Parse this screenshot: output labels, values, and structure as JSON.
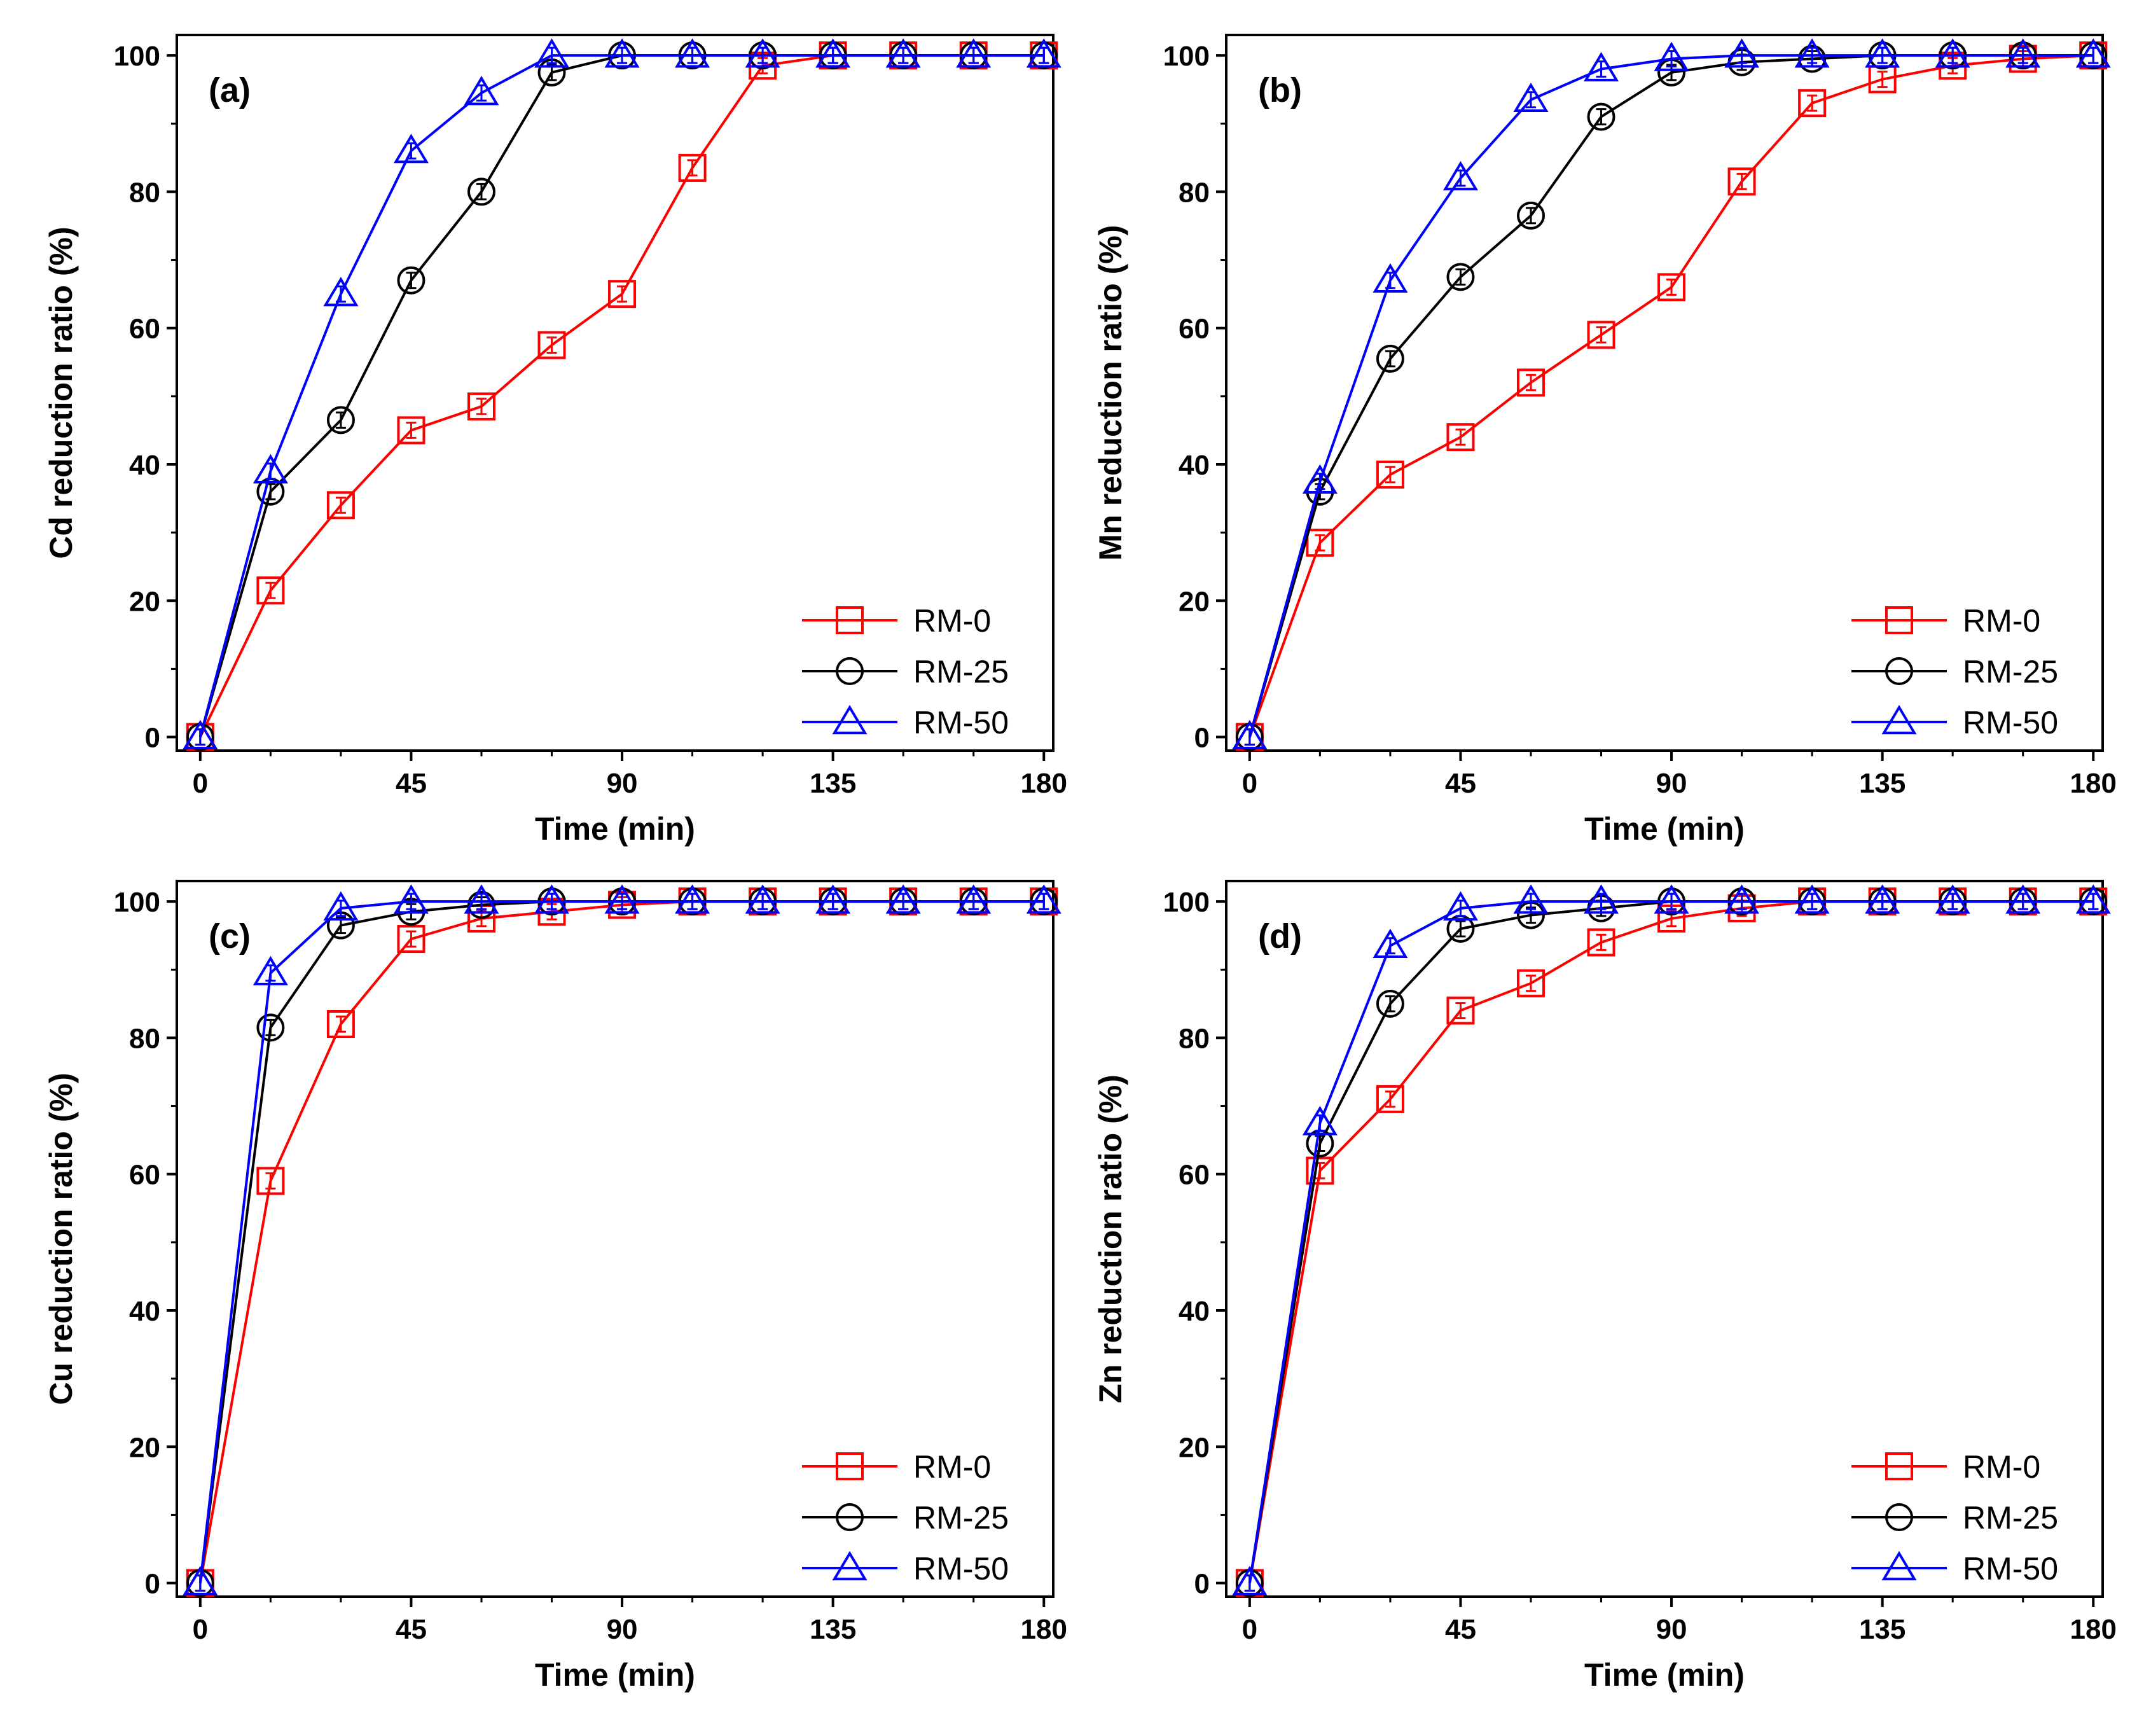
{
  "chart_data": [
    {
      "type": "line",
      "panel_label": "(a)",
      "xlabel": "Time (min)",
      "ylabel": "Cd reduction ratio (%)",
      "xlim": [
        -5,
        182
      ],
      "ylim": [
        -2,
        103
      ],
      "xticks": [
        "0",
        "45",
        "90",
        "135",
        "180"
      ],
      "yticks": [
        "0",
        "20",
        "40",
        "60",
        "80",
        "100"
      ],
      "legend_position": "bottom-right",
      "x": [
        0,
        15,
        30,
        45,
        60,
        75,
        90,
        105,
        120,
        135,
        150,
        165,
        180
      ],
      "series": [
        {
          "name": "RM-0",
          "color": "#ff0000",
          "marker": "square",
          "values": [
            0,
            21.5,
            34,
            45,
            48.5,
            57.5,
            65,
            83.5,
            98.5,
            100,
            100,
            100,
            100
          ]
        },
        {
          "name": "RM-25",
          "color": "#000000",
          "marker": "circle",
          "values": [
            0,
            36,
            46.5,
            67,
            80,
            97.5,
            100,
            100,
            100,
            100,
            100,
            100,
            100
          ]
        },
        {
          "name": "RM-50",
          "color": "#0000ff",
          "marker": "triangle",
          "values": [
            0,
            39,
            65,
            86,
            94.5,
            100,
            100,
            100,
            100,
            100,
            100,
            100,
            100
          ]
        }
      ]
    },
    {
      "type": "line",
      "panel_label": "(b)",
      "xlabel": "Time (min)",
      "ylabel": "Mn reduction ratio (%)",
      "xlim": [
        -5,
        182
      ],
      "ylim": [
        -2,
        103
      ],
      "xticks": [
        "0",
        "45",
        "90",
        "135",
        "180"
      ],
      "yticks": [
        "0",
        "20",
        "40",
        "60",
        "80",
        "100"
      ],
      "legend_position": "bottom-right",
      "x": [
        0,
        15,
        30,
        45,
        60,
        75,
        90,
        105,
        120,
        135,
        150,
        165,
        180
      ],
      "series": [
        {
          "name": "RM-0",
          "color": "#ff0000",
          "marker": "square",
          "values": [
            0,
            28.5,
            38.5,
            44,
            52,
            59,
            66,
            81.5,
            93,
            96.5,
            98.5,
            99.5,
            100
          ]
        },
        {
          "name": "RM-25",
          "color": "#000000",
          "marker": "circle",
          "values": [
            0,
            36,
            55.5,
            67.5,
            76.5,
            91,
            97.5,
            99,
            99.5,
            100,
            100,
            100,
            100
          ]
        },
        {
          "name": "RM-50",
          "color": "#0000ff",
          "marker": "triangle",
          "values": [
            0,
            37.5,
            67,
            82,
            93.5,
            98,
            99.5,
            100,
            100,
            100,
            100,
            100,
            100
          ]
        }
      ]
    },
    {
      "type": "line",
      "panel_label": "(c)",
      "xlabel": "Time (min)",
      "ylabel": "Cu reduction ratio (%)",
      "xlim": [
        -5,
        182
      ],
      "ylim": [
        -2,
        103
      ],
      "xticks": [
        "0",
        "45",
        "90",
        "135",
        "180"
      ],
      "yticks": [
        "0",
        "20",
        "40",
        "60",
        "80",
        "100"
      ],
      "legend_position": "bottom-right",
      "x": [
        0,
        15,
        30,
        45,
        60,
        75,
        90,
        105,
        120,
        135,
        150,
        165,
        180
      ],
      "series": [
        {
          "name": "RM-0",
          "color": "#ff0000",
          "marker": "square",
          "values": [
            0,
            59,
            82,
            94.5,
            97.5,
            98.5,
            99.5,
            100,
            100,
            100,
            100,
            100,
            100
          ]
        },
        {
          "name": "RM-25",
          "color": "#000000",
          "marker": "circle",
          "values": [
            0,
            81.5,
            96.5,
            98.5,
            99.5,
            100,
            100,
            100,
            100,
            100,
            100,
            100,
            100
          ]
        },
        {
          "name": "RM-50",
          "color": "#0000ff",
          "marker": "triangle",
          "values": [
            0,
            89.5,
            99,
            100,
            100,
            100,
            100,
            100,
            100,
            100,
            100,
            100,
            100
          ]
        }
      ]
    },
    {
      "type": "line",
      "panel_label": "(d)",
      "xlabel": "Time (min)",
      "ylabel": "Zn reduction ratio (%)",
      "xlim": [
        -5,
        182
      ],
      "ylim": [
        -2,
        103
      ],
      "xticks": [
        "0",
        "45",
        "90",
        "135",
        "180"
      ],
      "yticks": [
        "0",
        "20",
        "40",
        "60",
        "80",
        "100"
      ],
      "legend_position": "bottom-right",
      "x": [
        0,
        15,
        30,
        45,
        60,
        75,
        90,
        105,
        120,
        135,
        150,
        165,
        180
      ],
      "series": [
        {
          "name": "RM-0",
          "color": "#ff0000",
          "marker": "square",
          "values": [
            0,
            60.5,
            71,
            84,
            88,
            94,
            97.5,
            99,
            100,
            100,
            100,
            100,
            100
          ]
        },
        {
          "name": "RM-25",
          "color": "#000000",
          "marker": "circle",
          "values": [
            0,
            64.5,
            85,
            96,
            98,
            99,
            100,
            100,
            100,
            100,
            100,
            100,
            100
          ]
        },
        {
          "name": "RM-50",
          "color": "#0000ff",
          "marker": "triangle",
          "values": [
            0,
            67.5,
            93.5,
            99,
            100,
            100,
            100,
            100,
            100,
            100,
            100,
            100,
            100
          ]
        }
      ]
    }
  ]
}
